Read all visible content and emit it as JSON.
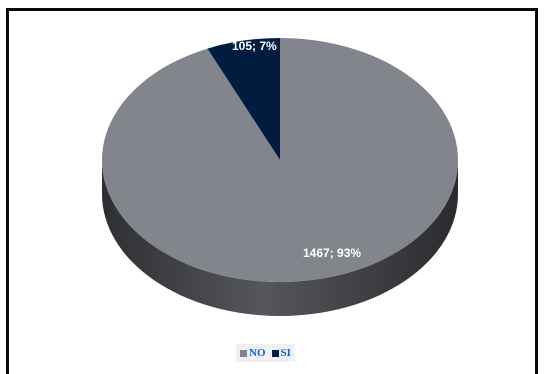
{
  "chart_data": {
    "type": "pie",
    "style": "3d",
    "title": "",
    "legend_position": "bottom",
    "slices": [
      {
        "name": "NO",
        "value": 1467,
        "percent": 93,
        "label": "1467; 93%",
        "color": "#82858c",
        "side_color": "#4a4b50"
      },
      {
        "name": "SI",
        "value": 105,
        "percent": 7,
        "label": "105; 7%",
        "color": "#011c3f",
        "side_color": "#000d20"
      }
    ],
    "legend": [
      {
        "name": "NO",
        "color": "#82858c"
      },
      {
        "name": "SI",
        "color": "#011c3f"
      }
    ]
  }
}
